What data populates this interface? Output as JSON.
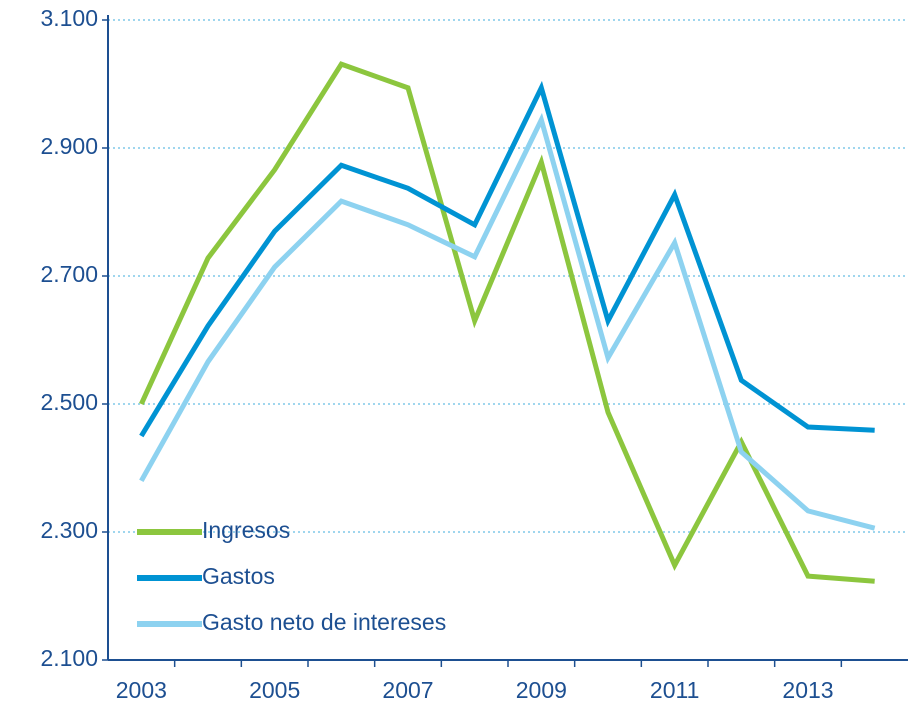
{
  "chart_data": {
    "type": "line",
    "categories": [
      "2003",
      null,
      "2005",
      null,
      "2007",
      null,
      "2009",
      null,
      "2011",
      null,
      "2013",
      null
    ],
    "series": [
      {
        "name": "Ingresos",
        "color": "#8cc63e",
        "values": [
          2500,
          2728,
          2866,
          3031,
          2994,
          2630,
          2878,
          2487,
          2248,
          2441,
          2231,
          2223
        ]
      },
      {
        "name": "Gastos",
        "color": "#0093d3",
        "values": [
          2450,
          2622,
          2770,
          2873,
          2837,
          2780,
          2994,
          2630,
          2827,
          2537,
          2464,
          2459
        ]
      },
      {
        "name": "Gasto neto de intereses",
        "color": "#8dd2f0",
        "values": [
          2380,
          2566,
          2714,
          2817,
          2780,
          2730,
          2944,
          2572,
          2752,
          2425,
          2333,
          2306
        ]
      }
    ],
    "ylim": [
      2100,
      3100
    ],
    "yticks": [
      {
        "value": 2100,
        "label": "2.100"
      },
      {
        "value": 2300,
        "label": "2.300"
      },
      {
        "value": 2500,
        "label": "2.500"
      },
      {
        "value": 2700,
        "label": "2.700"
      },
      {
        "value": 2900,
        "label": "2.900"
      },
      {
        "value": 3100,
        "label": "3.100"
      }
    ],
    "grid": true,
    "legend": "lower left"
  }
}
